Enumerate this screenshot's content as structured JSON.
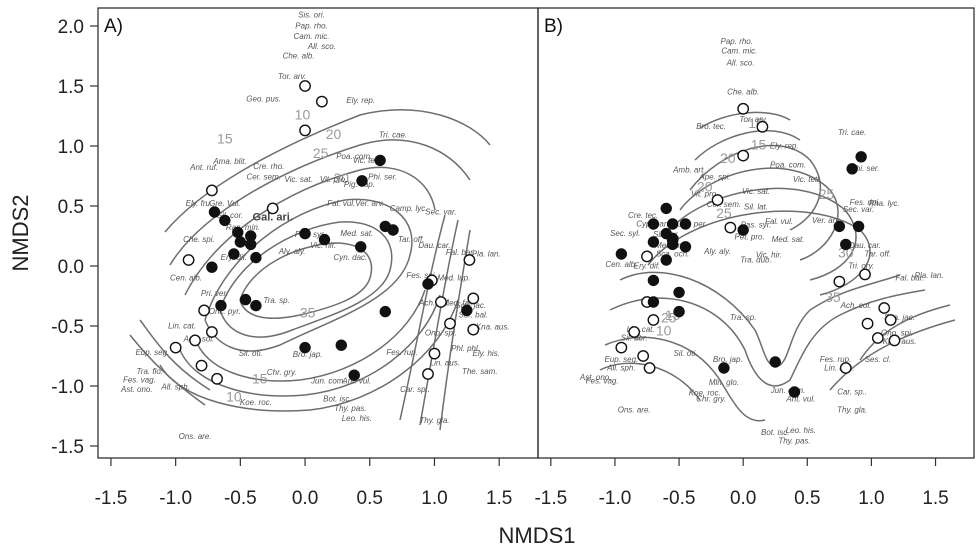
{
  "chart_data": {
    "type": "scatter",
    "xlabel": "NMDS1",
    "ylabel": "NMDS2",
    "xlim": [
      -1.6,
      1.8
    ],
    "ylim": [
      -1.6,
      2.15
    ],
    "xticks": [
      "-1.5",
      "-1.0",
      "-0.5",
      "0.0",
      "0.5",
      "1.0",
      "1.5"
    ],
    "yticks": [
      "-1.5",
      "-1.0",
      "-0.5",
      "0.0",
      "0.5",
      "1.0",
      "1.5",
      "2.0"
    ],
    "legend": "none",
    "panels": [
      {
        "label": "A)",
        "contour_labels": [
          "10",
          "15",
          "20",
          "25",
          "30",
          "35",
          "10",
          "15"
        ],
        "open_points": [
          [
            0.0,
            1.5
          ],
          [
            0.13,
            1.37
          ],
          [
            0.0,
            1.13
          ],
          [
            -0.72,
            0.63
          ],
          [
            -0.25,
            0.48
          ],
          [
            -0.9,
            0.05
          ],
          [
            -0.78,
            -0.37
          ],
          [
            -0.85,
            -0.62
          ],
          [
            -1.0,
            -0.68
          ],
          [
            -0.8,
            -0.83
          ],
          [
            -0.68,
            -0.94
          ],
          [
            -0.72,
            -0.55
          ],
          [
            0.98,
            -0.12
          ],
          [
            1.05,
            -0.3
          ],
          [
            1.12,
            -0.48
          ],
          [
            1.3,
            -0.27
          ],
          [
            1.3,
            -0.53
          ],
          [
            1.27,
            0.05
          ],
          [
            1.0,
            -0.73
          ],
          [
            0.95,
            -0.9
          ]
        ],
        "filled_points": [
          [
            -0.7,
            0.45
          ],
          [
            -0.62,
            0.38
          ],
          [
            -0.52,
            0.28
          ],
          [
            -0.42,
            0.25
          ],
          [
            -0.5,
            0.2
          ],
          [
            -0.42,
            0.18
          ],
          [
            -0.55,
            0.1
          ],
          [
            -0.38,
            0.07
          ],
          [
            -0.72,
            -0.01
          ],
          [
            -0.65,
            -0.33
          ],
          [
            -0.46,
            -0.28
          ],
          [
            -0.38,
            -0.33
          ],
          [
            0.0,
            0.27
          ],
          [
            0.15,
            0.22
          ],
          [
            0.43,
            0.16
          ],
          [
            0.44,
            0.71
          ],
          [
            0.58,
            0.88
          ],
          [
            0.62,
            0.33
          ],
          [
            0.68,
            0.3
          ],
          [
            0.62,
            -0.38
          ],
          [
            0.95,
            -0.15
          ],
          [
            1.25,
            -0.37
          ],
          [
            0.0,
            -0.68
          ],
          [
            0.28,
            -0.66
          ],
          [
            0.38,
            -0.91
          ]
        ],
        "species": [
          [
            0.05,
            2.07,
            "Sis. ori."
          ],
          [
            0.05,
            1.98,
            "Pap. rho."
          ],
          [
            0.05,
            1.89,
            "Cam. mic."
          ],
          [
            0.13,
            1.81,
            "All. sco."
          ],
          [
            -0.05,
            1.73,
            "Che. alb."
          ],
          [
            -0.1,
            1.56,
            "Tor. arv."
          ],
          [
            -0.32,
            1.37,
            "Geo. pus."
          ],
          [
            0.43,
            1.36,
            "Ely. rep."
          ],
          [
            0.68,
            1.07,
            "Tri. cae."
          ],
          [
            -0.58,
            0.85,
            "Ama. blit."
          ],
          [
            0.38,
            0.89,
            "Poa. com."
          ],
          [
            0.48,
            0.86,
            "Vic. tetr."
          ],
          [
            -0.78,
            0.8,
            "Ant. ruf."
          ],
          [
            -0.28,
            0.81,
            "Cre. rho."
          ],
          [
            -0.32,
            0.72,
            "Cer. sem."
          ],
          [
            -0.05,
            0.7,
            "Vic. sat."
          ],
          [
            0.22,
            0.7,
            "Vit. pro."
          ],
          [
            0.42,
            0.66,
            "Pig. cap."
          ],
          [
            0.6,
            0.72,
            "Phi. ser."
          ],
          [
            -0.82,
            0.5,
            "Ely. fru."
          ],
          [
            -0.62,
            0.5,
            "Gre. Vul."
          ],
          [
            -0.58,
            0.4,
            "Sil. cor."
          ],
          [
            0.28,
            0.5,
            "Fal. vul."
          ],
          [
            0.5,
            0.5,
            "Ver. arv."
          ],
          [
            0.8,
            0.46,
            "Camp. lyc."
          ],
          [
            1.05,
            0.43,
            "Sec. var."
          ],
          [
            -0.82,
            0.2,
            "Che. spi."
          ],
          [
            -0.48,
            0.3,
            "Ran. min."
          ],
          [
            -0.25,
            0.38,
            "Gal. ari."
          ],
          [
            0.04,
            0.24,
            "Pas. syr."
          ],
          [
            0.4,
            0.25,
            "Med. sat."
          ],
          [
            -0.55,
            0.05,
            "Ery. dif."
          ],
          [
            -0.1,
            0.1,
            "Aly. aly."
          ],
          [
            0.14,
            0.15,
            "Vic. hir."
          ],
          [
            0.35,
            0.05,
            "Cyn. dac."
          ],
          [
            0.82,
            0.2,
            "Tar. off."
          ],
          [
            1.0,
            0.15,
            "Dau. car."
          ],
          [
            1.2,
            0.09,
            "Fal. bar."
          ],
          [
            1.4,
            0.08,
            "Pla. lan."
          ],
          [
            -0.92,
            -0.12,
            "Cen. alb."
          ],
          [
            -0.7,
            -0.25,
            "Pri. ver."
          ],
          [
            -0.62,
            -0.4,
            "Onc. pyr."
          ],
          [
            0.9,
            -0.1,
            "Fes. spi."
          ],
          [
            1.15,
            -0.12,
            "Med. lup."
          ],
          [
            -0.22,
            -0.31,
            "Tra. sp."
          ],
          [
            1.0,
            -0.33,
            "Ach. col."
          ],
          [
            1.18,
            -0.33,
            "Med. fal."
          ],
          [
            1.28,
            -0.35,
            "Sca. jac."
          ],
          [
            1.3,
            -0.43,
            "Sor. bal."
          ],
          [
            1.45,
            -0.53,
            "Kna. aus."
          ],
          [
            -0.95,
            -0.52,
            "Lin. cat."
          ],
          [
            -0.82,
            -0.63,
            "Ach. sol."
          ],
          [
            -1.18,
            -0.74,
            "Eup. seg."
          ],
          [
            -0.42,
            -0.75,
            "Sil. oti."
          ],
          [
            0.02,
            -0.76,
            "Bro. jap."
          ],
          [
            0.75,
            -0.74,
            "Fes. rup."
          ],
          [
            1.05,
            -0.58,
            "Ono. spi."
          ],
          [
            1.24,
            -0.71,
            "Phl. phl."
          ],
          [
            1.4,
            -0.75,
            "Ely. his."
          ],
          [
            -1.2,
            -0.9,
            "Tra. flo."
          ],
          [
            -1.28,
            -0.97,
            "Fes. vag."
          ],
          [
            -1.3,
            -1.05,
            "Ast. ono."
          ],
          [
            -1.0,
            -1.03,
            "All. sph."
          ],
          [
            -0.18,
            -0.91,
            "Chr. gry."
          ],
          [
            0.18,
            -0.98,
            "Jun. com."
          ],
          [
            0.4,
            -0.98,
            "Ant. vul."
          ],
          [
            1.08,
            -0.83,
            "Lin. aus."
          ],
          [
            1.35,
            -0.9,
            "The. sam."
          ],
          [
            0.85,
            -1.05,
            "Car. sp.."
          ],
          [
            -0.38,
            -1.16,
            "Koe. roc."
          ],
          [
            0.25,
            -1.13,
            "Bot. isc."
          ],
          [
            0.35,
            -1.21,
            "Thy. pas."
          ],
          [
            0.4,
            -1.29,
            "Leo. his."
          ],
          [
            1.0,
            -1.31,
            "Thy. gla."
          ],
          [
            -0.85,
            -1.44,
            "Ons. are."
          ]
        ]
      },
      {
        "label": "B)",
        "contour_labels": [
          "10",
          "15",
          "20",
          "25",
          "30",
          "35",
          "25",
          "25",
          "20",
          "15",
          "10",
          "5"
        ],
        "open_points": [
          [
            0.0,
            1.31
          ],
          [
            0.15,
            1.16
          ],
          [
            0.0,
            0.92
          ],
          [
            -0.1,
            0.32
          ],
          [
            -0.55,
            0.22
          ],
          [
            -0.75,
            0.08
          ],
          [
            -0.2,
            0.55
          ],
          [
            -0.75,
            -0.3
          ],
          [
            -0.7,
            -0.45
          ],
          [
            -0.85,
            -0.55
          ],
          [
            -0.78,
            -0.75
          ],
          [
            -0.73,
            -0.85
          ],
          [
            -0.95,
            -0.68
          ],
          [
            0.95,
            -0.07
          ],
          [
            0.75,
            -0.13
          ],
          [
            1.1,
            -0.35
          ],
          [
            1.15,
            -0.45
          ],
          [
            1.05,
            -0.6
          ],
          [
            1.18,
            -0.62
          ],
          [
            0.8,
            -0.85
          ],
          [
            0.97,
            -0.48
          ]
        ],
        "filled_points": [
          [
            0.92,
            0.91
          ],
          [
            0.85,
            0.81
          ],
          [
            0.75,
            0.33
          ],
          [
            0.9,
            0.33
          ],
          [
            0.8,
            0.18
          ],
          [
            -0.6,
            0.48
          ],
          [
            -0.55,
            0.35
          ],
          [
            -0.6,
            0.27
          ],
          [
            -0.7,
            0.35
          ],
          [
            -0.55,
            0.23
          ],
          [
            -0.45,
            0.35
          ],
          [
            -0.7,
            0.2
          ],
          [
            -0.55,
            0.18
          ],
          [
            -0.45,
            0.16
          ],
          [
            -0.6,
            0.05
          ],
          [
            -0.95,
            0.1
          ],
          [
            -0.7,
            -0.12
          ],
          [
            -0.5,
            -0.22
          ],
          [
            -0.7,
            -0.3
          ],
          [
            -0.5,
            -0.38
          ],
          [
            -0.15,
            -0.85
          ],
          [
            0.25,
            -0.8
          ],
          [
            0.4,
            -1.05
          ],
          [
            0.0,
            0.3
          ]
        ],
        "species": [
          [
            -0.05,
            1.85,
            "Pap. rho."
          ],
          [
            -0.03,
            1.77,
            "Cam. mic."
          ],
          [
            -0.02,
            1.67,
            "All. sco."
          ],
          [
            0.0,
            1.43,
            "Che. alb."
          ],
          [
            0.08,
            1.2,
            "Tor. arv."
          ],
          [
            -0.25,
            1.14,
            "Bro. tec."
          ],
          [
            0.32,
            0.98,
            "Ely. rep."
          ],
          [
            0.85,
            1.09,
            "Tri. cae."
          ],
          [
            -0.42,
            0.78,
            "Amb. art."
          ],
          [
            -0.22,
            0.72,
            "Ape. spi."
          ],
          [
            0.35,
            0.82,
            "Poa. com."
          ],
          [
            0.5,
            0.7,
            "Vic. tetr."
          ],
          [
            0.95,
            0.79,
            "Phi. ser."
          ],
          [
            -0.3,
            0.58,
            "Vit. pro."
          ],
          [
            0.1,
            0.6,
            "Vic. sat."
          ],
          [
            -0.15,
            0.49,
            "Cer. sem."
          ],
          [
            0.1,
            0.47,
            "Sil. lat."
          ],
          [
            -0.78,
            0.4,
            "Cre. tec."
          ],
          [
            -0.7,
            0.33,
            "Cyp. pan."
          ],
          [
            -0.4,
            0.33,
            "Cro. per."
          ],
          [
            0.1,
            0.32,
            "Pas. syr."
          ],
          [
            0.28,
            0.35,
            "Fal. vul."
          ],
          [
            0.65,
            0.36,
            "Ver. arv."
          ],
          [
            0.95,
            0.51,
            "Fes. ripi."
          ],
          [
            1.1,
            0.5,
            "Pha. lyc."
          ],
          [
            0.9,
            0.45,
            "Sec. var."
          ],
          [
            -0.92,
            0.25,
            "Sec. syl."
          ],
          [
            -0.6,
            0.24,
            "Sil. cor."
          ],
          [
            -0.55,
            0.15,
            "Med. min."
          ],
          [
            0.05,
            0.22,
            "Pet. pro."
          ],
          [
            0.35,
            0.2,
            "Med. sat."
          ],
          [
            0.95,
            0.15,
            "Dau. car."
          ],
          [
            1.05,
            0.08,
            "Tar. off."
          ],
          [
            -0.55,
            0.08,
            "Sca. och."
          ],
          [
            -0.2,
            0.1,
            "Aly. aly."
          ],
          [
            0.1,
            0.03,
            "Tra. dub."
          ],
          [
            0.2,
            0.07,
            "Vic. hir."
          ],
          [
            -0.95,
            -0.01,
            "Cen. alb."
          ],
          [
            -0.75,
            -0.02,
            "Ery. dif."
          ],
          [
            0.92,
            -0.02,
            "Tri. ory."
          ],
          [
            1.3,
            -0.12,
            "Fal. bar."
          ],
          [
            1.45,
            -0.1,
            "Pla. lan."
          ],
          [
            0.0,
            -0.45,
            "Tra. sp."
          ],
          [
            0.88,
            -0.35,
            "Ach. col."
          ],
          [
            1.22,
            -0.45,
            "Sca. jac."
          ],
          [
            1.2,
            -0.58,
            "Ono. spi."
          ],
          [
            1.22,
            -0.65,
            "Kna. aus."
          ],
          [
            -0.8,
            -0.55,
            "Lin. cat."
          ],
          [
            -0.85,
            -0.62,
            "Sil. bor."
          ],
          [
            -0.95,
            -0.8,
            "Eup. seg."
          ],
          [
            -0.95,
            -0.87,
            "All. sph."
          ],
          [
            -1.15,
            -0.95,
            "Ast. ono."
          ],
          [
            -1.1,
            -0.98,
            "Fes. vag."
          ],
          [
            -0.45,
            -0.75,
            "Sil. oti."
          ],
          [
            -0.12,
            -0.8,
            "Bro. jap."
          ],
          [
            0.72,
            -0.8,
            "Fes. rup."
          ],
          [
            0.75,
            -0.87,
            "Lin. aus."
          ],
          [
            1.05,
            -0.8,
            "Ses. cl."
          ],
          [
            -0.15,
            -0.99,
            "Mln. glo."
          ],
          [
            -0.3,
            -1.08,
            "Koe. roc."
          ],
          [
            -0.25,
            -1.13,
            "Chr. gry."
          ],
          [
            0.35,
            -1.06,
            "Jun. com."
          ],
          [
            0.45,
            -1.13,
            "Ant. vul."
          ],
          [
            0.85,
            -1.07,
            "Car. sp.."
          ],
          [
            0.85,
            -1.22,
            "Thy. gla."
          ],
          [
            -0.85,
            -1.22,
            "Ons. are."
          ],
          [
            0.45,
            -1.39,
            "Leo. his."
          ],
          [
            0.25,
            -1.41,
            "Bot. isc."
          ],
          [
            0.4,
            -1.48,
            "Thy. pas."
          ]
        ]
      }
    ]
  }
}
